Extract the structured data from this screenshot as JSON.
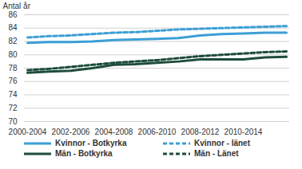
{
  "chart_data": {
    "type": "line",
    "y_label": "Antal år",
    "categories": [
      "2000-2004",
      null,
      "2002-2006",
      null,
      "2004-2008",
      null,
      "2006-2010",
      null,
      "2008-2012",
      null,
      "2010-2014",
      null,
      null
    ],
    "series": [
      {
        "name": "Kvinnor - Botkyrka",
        "color": "#3c9fd6",
        "line_style": "solid",
        "values": [
          81.8,
          81.9,
          81.9,
          82.0,
          82.2,
          82.3,
          82.4,
          82.5,
          82.9,
          83.1,
          83.2,
          83.3,
          83.3
        ]
      },
      {
        "name": "Kvinnor - länet",
        "color": "#3c9fd6",
        "line_style": "dashed",
        "values": [
          82.6,
          82.8,
          82.9,
          83.1,
          83.3,
          83.4,
          83.6,
          83.8,
          83.9,
          84.0,
          84.1,
          84.2,
          84.3
        ]
      },
      {
        "name": "Män - Botkyrka",
        "color": "#1d4d3a",
        "line_style": "solid",
        "values": [
          77.3,
          77.5,
          77.6,
          78.0,
          78.5,
          78.6,
          78.8,
          79.0,
          79.3,
          79.3,
          79.3,
          79.6,
          79.7
        ]
      },
      {
        "name": "Män - Länet",
        "color": "#1d4d3a",
        "line_style": "dashed",
        "values": [
          77.7,
          77.9,
          78.2,
          78.5,
          78.8,
          79.0,
          79.2,
          79.5,
          79.8,
          80.0,
          80.2,
          80.4,
          80.5
        ]
      }
    ],
    "ylim": [
      70,
      86
    ],
    "yticks": [
      70,
      72,
      74,
      76,
      78,
      80,
      82,
      84,
      86
    ],
    "grid": true,
    "legend": "bottom"
  }
}
